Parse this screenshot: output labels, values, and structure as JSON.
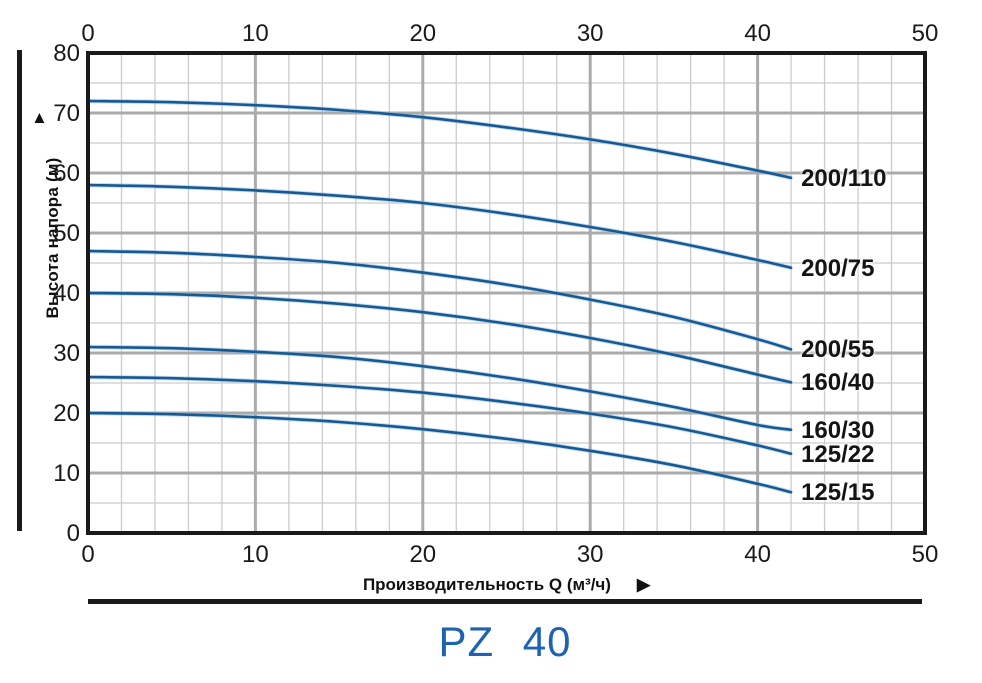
{
  "title": "PZ 40",
  "axes": {
    "y_arrow": "▲",
    "x_arrow": "▶"
  },
  "colors": {
    "curve": "#155a94",
    "curve_halo": "#8fb8dc",
    "grid_major": "#ababab",
    "grid_minor": "#cccccc",
    "frame": "#1a1a1a",
    "title_blue": "#1e62b2"
  },
  "chart_data": {
    "type": "line",
    "title": "PZ 40",
    "xlabel": "Производительность Q (м³/ч)",
    "ylabel": "Высота напора (м)",
    "xlim": [
      0,
      50
    ],
    "ylim": [
      0,
      80
    ],
    "x_major_step": 10,
    "x_minor_step": 2,
    "y_major_step": 10,
    "y_minor_step": 5,
    "x_ticks": [
      0,
      10,
      20,
      30,
      40,
      50
    ],
    "y_ticks": [
      0,
      10,
      20,
      30,
      40,
      50,
      60,
      70,
      80
    ],
    "grid": "on",
    "legend_position": "right-of-curve-endpoints",
    "x": [
      0,
      5,
      10,
      15,
      20,
      25,
      30,
      35,
      40,
      42
    ],
    "series": [
      {
        "name": "200/110",
        "values": [
          72,
          71.8,
          71.3,
          70.5,
          69.3,
          67.6,
          65.6,
          63.2,
          60.4,
          59.2
        ]
      },
      {
        "name": "200/75",
        "values": [
          58,
          57.7,
          57.1,
          56.2,
          55.0,
          53.2,
          51.0,
          48.5,
          45.5,
          44.2
        ]
      },
      {
        "name": "200/55",
        "values": [
          47,
          46.7,
          46.0,
          45.0,
          43.4,
          41.4,
          38.9,
          36.0,
          32.3,
          30.6
        ]
      },
      {
        "name": "160/40",
        "values": [
          40,
          39.8,
          39.2,
          38.2,
          36.8,
          34.9,
          32.5,
          29.7,
          26.4,
          25.1
        ]
      },
      {
        "name": "160/30",
        "values": [
          31,
          30.8,
          30.2,
          29.3,
          27.8,
          25.9,
          23.6,
          21.0,
          18.0,
          17.2
        ]
      },
      {
        "name": "125/22",
        "values": [
          26,
          25.8,
          25.3,
          24.5,
          23.4,
          21.8,
          19.9,
          17.6,
          14.6,
          13.2
        ]
      },
      {
        "name": "125/15",
        "values": [
          20,
          19.8,
          19.3,
          18.5,
          17.3,
          15.7,
          13.7,
          11.3,
          8.2,
          6.8
        ]
      }
    ]
  }
}
